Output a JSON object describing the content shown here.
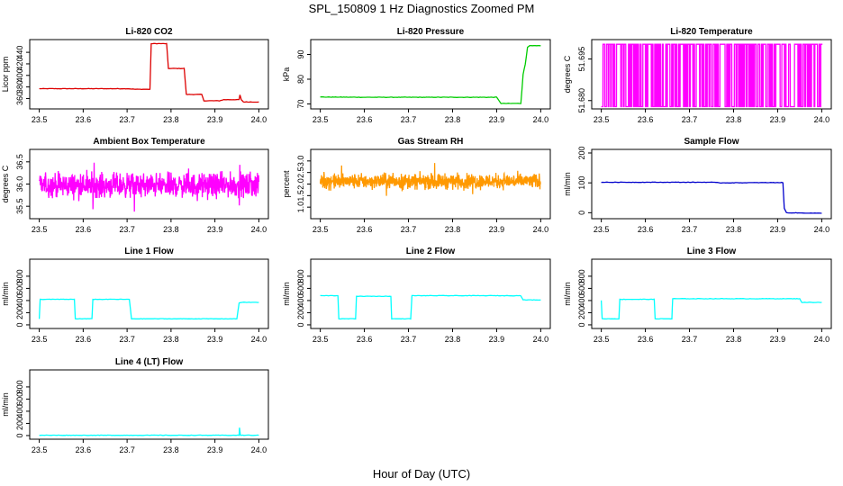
{
  "title": "SPL_150809  1 Hz Diagnostics Zoomed PM",
  "xlabel": "Hour of Day (UTC)",
  "chart_data": [
    {
      "type": "line",
      "title": "Li-820 CO2",
      "ylabel": "Licor ppm",
      "color": "#dd0000",
      "xlim": [
        23.5,
        24.0
      ],
      "ylim": [
        342,
        462
      ],
      "yticks": [
        "360",
        "380",
        "400",
        "420",
        "440"
      ],
      "ytick_values": [
        360,
        380,
        400,
        420,
        440
      ],
      "series": [
        {
          "name": "CO2",
          "x": [
            23.5,
            23.6,
            23.7,
            23.72,
            23.752,
            23.755,
            23.79,
            23.794,
            23.83,
            23.835,
            23.87,
            23.875,
            23.91,
            23.92,
            23.955,
            23.957,
            23.96,
            23.965,
            24.0
          ],
          "y": [
            377,
            377,
            377,
            376,
            376,
            455,
            455,
            412,
            412,
            367,
            367,
            356,
            356,
            358,
            358,
            366,
            358,
            354,
            354
          ]
        }
      ]
    },
    {
      "type": "line",
      "title": "Li-820 Pressure",
      "ylabel": "kPa",
      "color": "#00cc00",
      "xlim": [
        23.5,
        24.0
      ],
      "ylim": [
        68,
        96
      ],
      "yticks": [
        "70",
        "80",
        "90"
      ],
      "ytick_values": [
        70,
        80,
        90
      ],
      "series": [
        {
          "name": "Pressure",
          "x": [
            23.5,
            23.6,
            23.7,
            23.8,
            23.9,
            23.91,
            23.92,
            23.955,
            23.96,
            23.965,
            23.97,
            23.975,
            24.0
          ],
          "y": [
            72.8,
            72.7,
            72.7,
            72.7,
            72.7,
            70.2,
            70.2,
            70.2,
            82,
            86,
            93,
            93.5,
            93.5
          ]
        }
      ]
    },
    {
      "type": "line",
      "title": "Li-820 Temperature",
      "ylabel": "degrees C",
      "color": "#ff00ff",
      "xlim": [
        23.5,
        24.0
      ],
      "ylim": [
        51.677,
        51.702
      ],
      "yticks": [
        "51.680",
        "51.695"
      ],
      "ytick_values": [
        51.68,
        51.695
      ],
      "series": [
        {
          "name": "Temperature",
          "low": 51.6778,
          "high": 51.7003,
          "toggles": 260
        }
      ]
    },
    {
      "type": "line",
      "title": "Ambient Box Temperature",
      "ylabel": "degrees C",
      "color": "#ff00ff",
      "xlim": [
        23.5,
        24.0
      ],
      "ylim": [
        35.22,
        36.78
      ],
      "yticks": [
        "35.5",
        "36.0",
        "36.5"
      ],
      "ytick_values": [
        35.5,
        36.0,
        36.5
      ],
      "series": [
        {
          "name": "Ambient",
          "mean": 35.97,
          "spread": 0.26,
          "n": 900
        }
      ]
    },
    {
      "type": "line",
      "title": "Gas Stream RH",
      "ylabel": "percent",
      "color": "#ff9900",
      "xlim": [
        23.5,
        24.0
      ],
      "ylim": [
        0.5,
        3.5
      ],
      "yticks": [
        "1.0",
        "1.5",
        "2.0",
        "2.5",
        "3.0"
      ],
      "ytick_values": [
        1.0,
        1.5,
        2.0,
        2.5,
        3.0
      ],
      "series": [
        {
          "name": "RH",
          "mean": 2.12,
          "spread": 0.32,
          "n": 900
        }
      ]
    },
    {
      "type": "line",
      "title": "Sample Flow",
      "ylabel": "ml/min",
      "color": "#0000cc",
      "xlim": [
        23.5,
        24.0
      ],
      "ylim": [
        -20,
        212
      ],
      "yticks": [
        "0",
        "100",
        "200"
      ],
      "ytick_values": [
        0,
        100,
        200
      ],
      "series": [
        {
          "name": "Sample",
          "x": [
            23.5,
            23.75,
            23.77,
            23.9,
            23.912,
            23.915,
            23.92,
            24.0
          ],
          "y": [
            102,
            102,
            100,
            101,
            101,
            15,
            0,
            -2
          ]
        }
      ]
    },
    {
      "type": "line",
      "title": "Line 1 Flow",
      "ylabel": "ml/min",
      "color": "#00ffff",
      "xlim": [
        23.5,
        24.0
      ],
      "ylim": [
        -60,
        1080
      ],
      "yticks": [
        "0",
        "200",
        "400",
        "600",
        "800"
      ],
      "ytick_values": [
        0,
        200,
        400,
        600,
        800
      ],
      "series": [
        {
          "name": "Line 1",
          "x": [
            23.5,
            23.502,
            23.58,
            23.582,
            23.62,
            23.622,
            23.705,
            23.71,
            23.95,
            23.955,
            23.96,
            24.0
          ],
          "y": [
            100,
            420,
            420,
            100,
            100,
            420,
            420,
            100,
            100,
            360,
            370,
            370
          ]
        }
      ]
    },
    {
      "type": "line",
      "title": "Line 2 Flow",
      "ylabel": "ml/min",
      "color": "#00ffff",
      "xlim": [
        23.5,
        24.0
      ],
      "ylim": [
        -60,
        1080
      ],
      "yticks": [
        "0",
        "200",
        "400",
        "600",
        "800"
      ],
      "ytick_values": [
        0,
        200,
        400,
        600,
        800
      ],
      "series": [
        {
          "name": "Line 2",
          "x": [
            23.5,
            23.54,
            23.542,
            23.58,
            23.582,
            23.66,
            23.662,
            23.705,
            23.708,
            23.955,
            23.96,
            24.0
          ],
          "y": [
            480,
            480,
            100,
            100,
            470,
            470,
            100,
            100,
            480,
            480,
            410,
            410
          ]
        }
      ]
    },
    {
      "type": "line",
      "title": "Line 3 Flow",
      "ylabel": "ml/min",
      "color": "#00ffff",
      "xlim": [
        23.5,
        24.0
      ],
      "ylim": [
        -60,
        1080
      ],
      "yticks": [
        "0",
        "200",
        "400",
        "600",
        "800"
      ],
      "ytick_values": [
        0,
        200,
        400,
        600,
        800
      ],
      "series": [
        {
          "name": "Line 3",
          "x": [
            23.5,
            23.502,
            23.54,
            23.542,
            23.62,
            23.622,
            23.66,
            23.662,
            23.95,
            23.955,
            24.0
          ],
          "y": [
            400,
            100,
            100,
            420,
            420,
            100,
            100,
            430,
            430,
            370,
            370
          ]
        }
      ]
    },
    {
      "type": "line",
      "title": "Line 4 (LT) Flow",
      "ylabel": "ml/min",
      "color": "#00ffff",
      "xlim": [
        23.5,
        24.0
      ],
      "ylim": [
        -60,
        1080
      ],
      "yticks": [
        "0",
        "200",
        "400",
        "600",
        "800"
      ],
      "ytick_values": [
        0,
        200,
        400,
        600,
        800
      ],
      "series": [
        {
          "name": "Line 4",
          "x": [
            23.5,
            23.955,
            23.956,
            23.958,
            23.96,
            24.0
          ],
          "y": [
            5,
            5,
            130,
            5,
            5,
            5
          ]
        }
      ]
    }
  ],
  "xticks": [
    "23.5",
    "23.6",
    "23.7",
    "23.8",
    "23.9",
    "24.0"
  ],
  "xtick_values": [
    23.5,
    23.6,
    23.7,
    23.8,
    23.9,
    24.0
  ]
}
